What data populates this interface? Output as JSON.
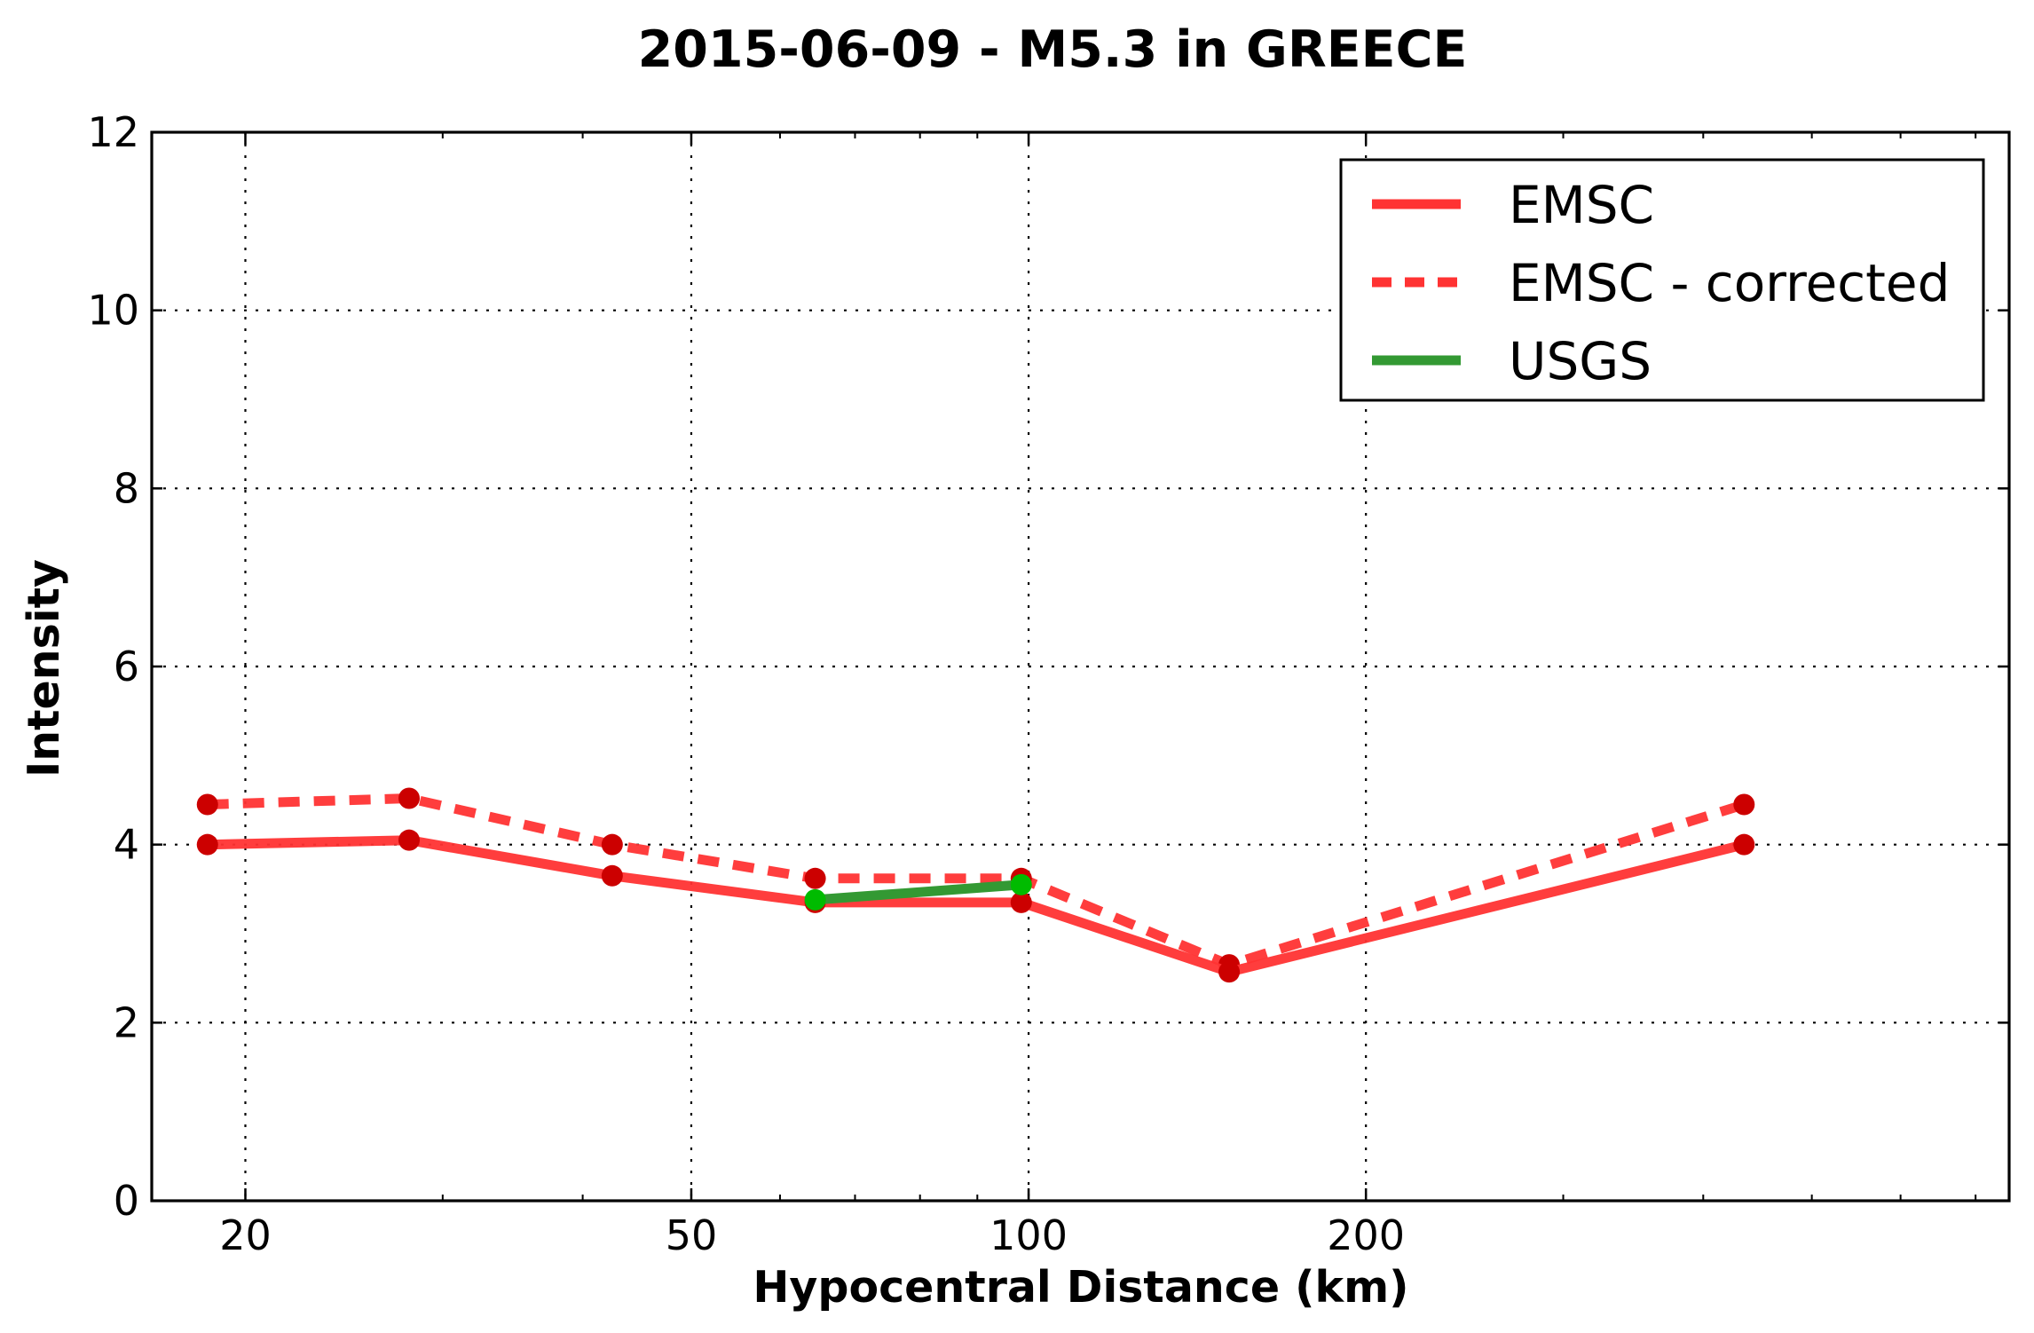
{
  "chart_data": {
    "type": "line",
    "title": "2015-06-09 - M5.3 in GREECE",
    "xlabel": "Hypocentral Distance (km)",
    "ylabel": "Intensity",
    "xscale": "log",
    "xlim": [
      16.5,
      750
    ],
    "ylim": [
      0,
      12
    ],
    "xticks": [
      20,
      50,
      100,
      200
    ],
    "xtick_labels": [
      "20",
      "50",
      "100",
      "200"
    ],
    "yticks": [
      0,
      2,
      4,
      6,
      8,
      10,
      12
    ],
    "ytick_labels": [
      "0",
      "2",
      "4",
      "6",
      "8",
      "10",
      "12"
    ],
    "grid": true,
    "legend_position": "top-right",
    "series": [
      {
        "name": "EMSC",
        "style": "solid",
        "color": "#ff3333",
        "marker_color": "#cc0000",
        "x": [
          18.5,
          28.0,
          42.5,
          64.5,
          98.5,
          151.0,
          435.0
        ],
        "y": [
          4.0,
          4.05,
          3.65,
          3.35,
          3.35,
          2.57,
          4.0
        ]
      },
      {
        "name": "EMSC - corrected",
        "style": "dashed",
        "color": "#ff3333",
        "marker_color": "#cc0000",
        "x": [
          18.5,
          28.0,
          42.5,
          64.5,
          98.5,
          151.0,
          435.0
        ],
        "y": [
          4.45,
          4.52,
          4.0,
          3.62,
          3.62,
          2.65,
          4.45
        ]
      },
      {
        "name": "USGS",
        "style": "solid",
        "color": "#339933",
        "marker_color": "#00bb00",
        "x": [
          64.5,
          98.5
        ],
        "y": [
          3.38,
          3.55
        ]
      }
    ]
  }
}
